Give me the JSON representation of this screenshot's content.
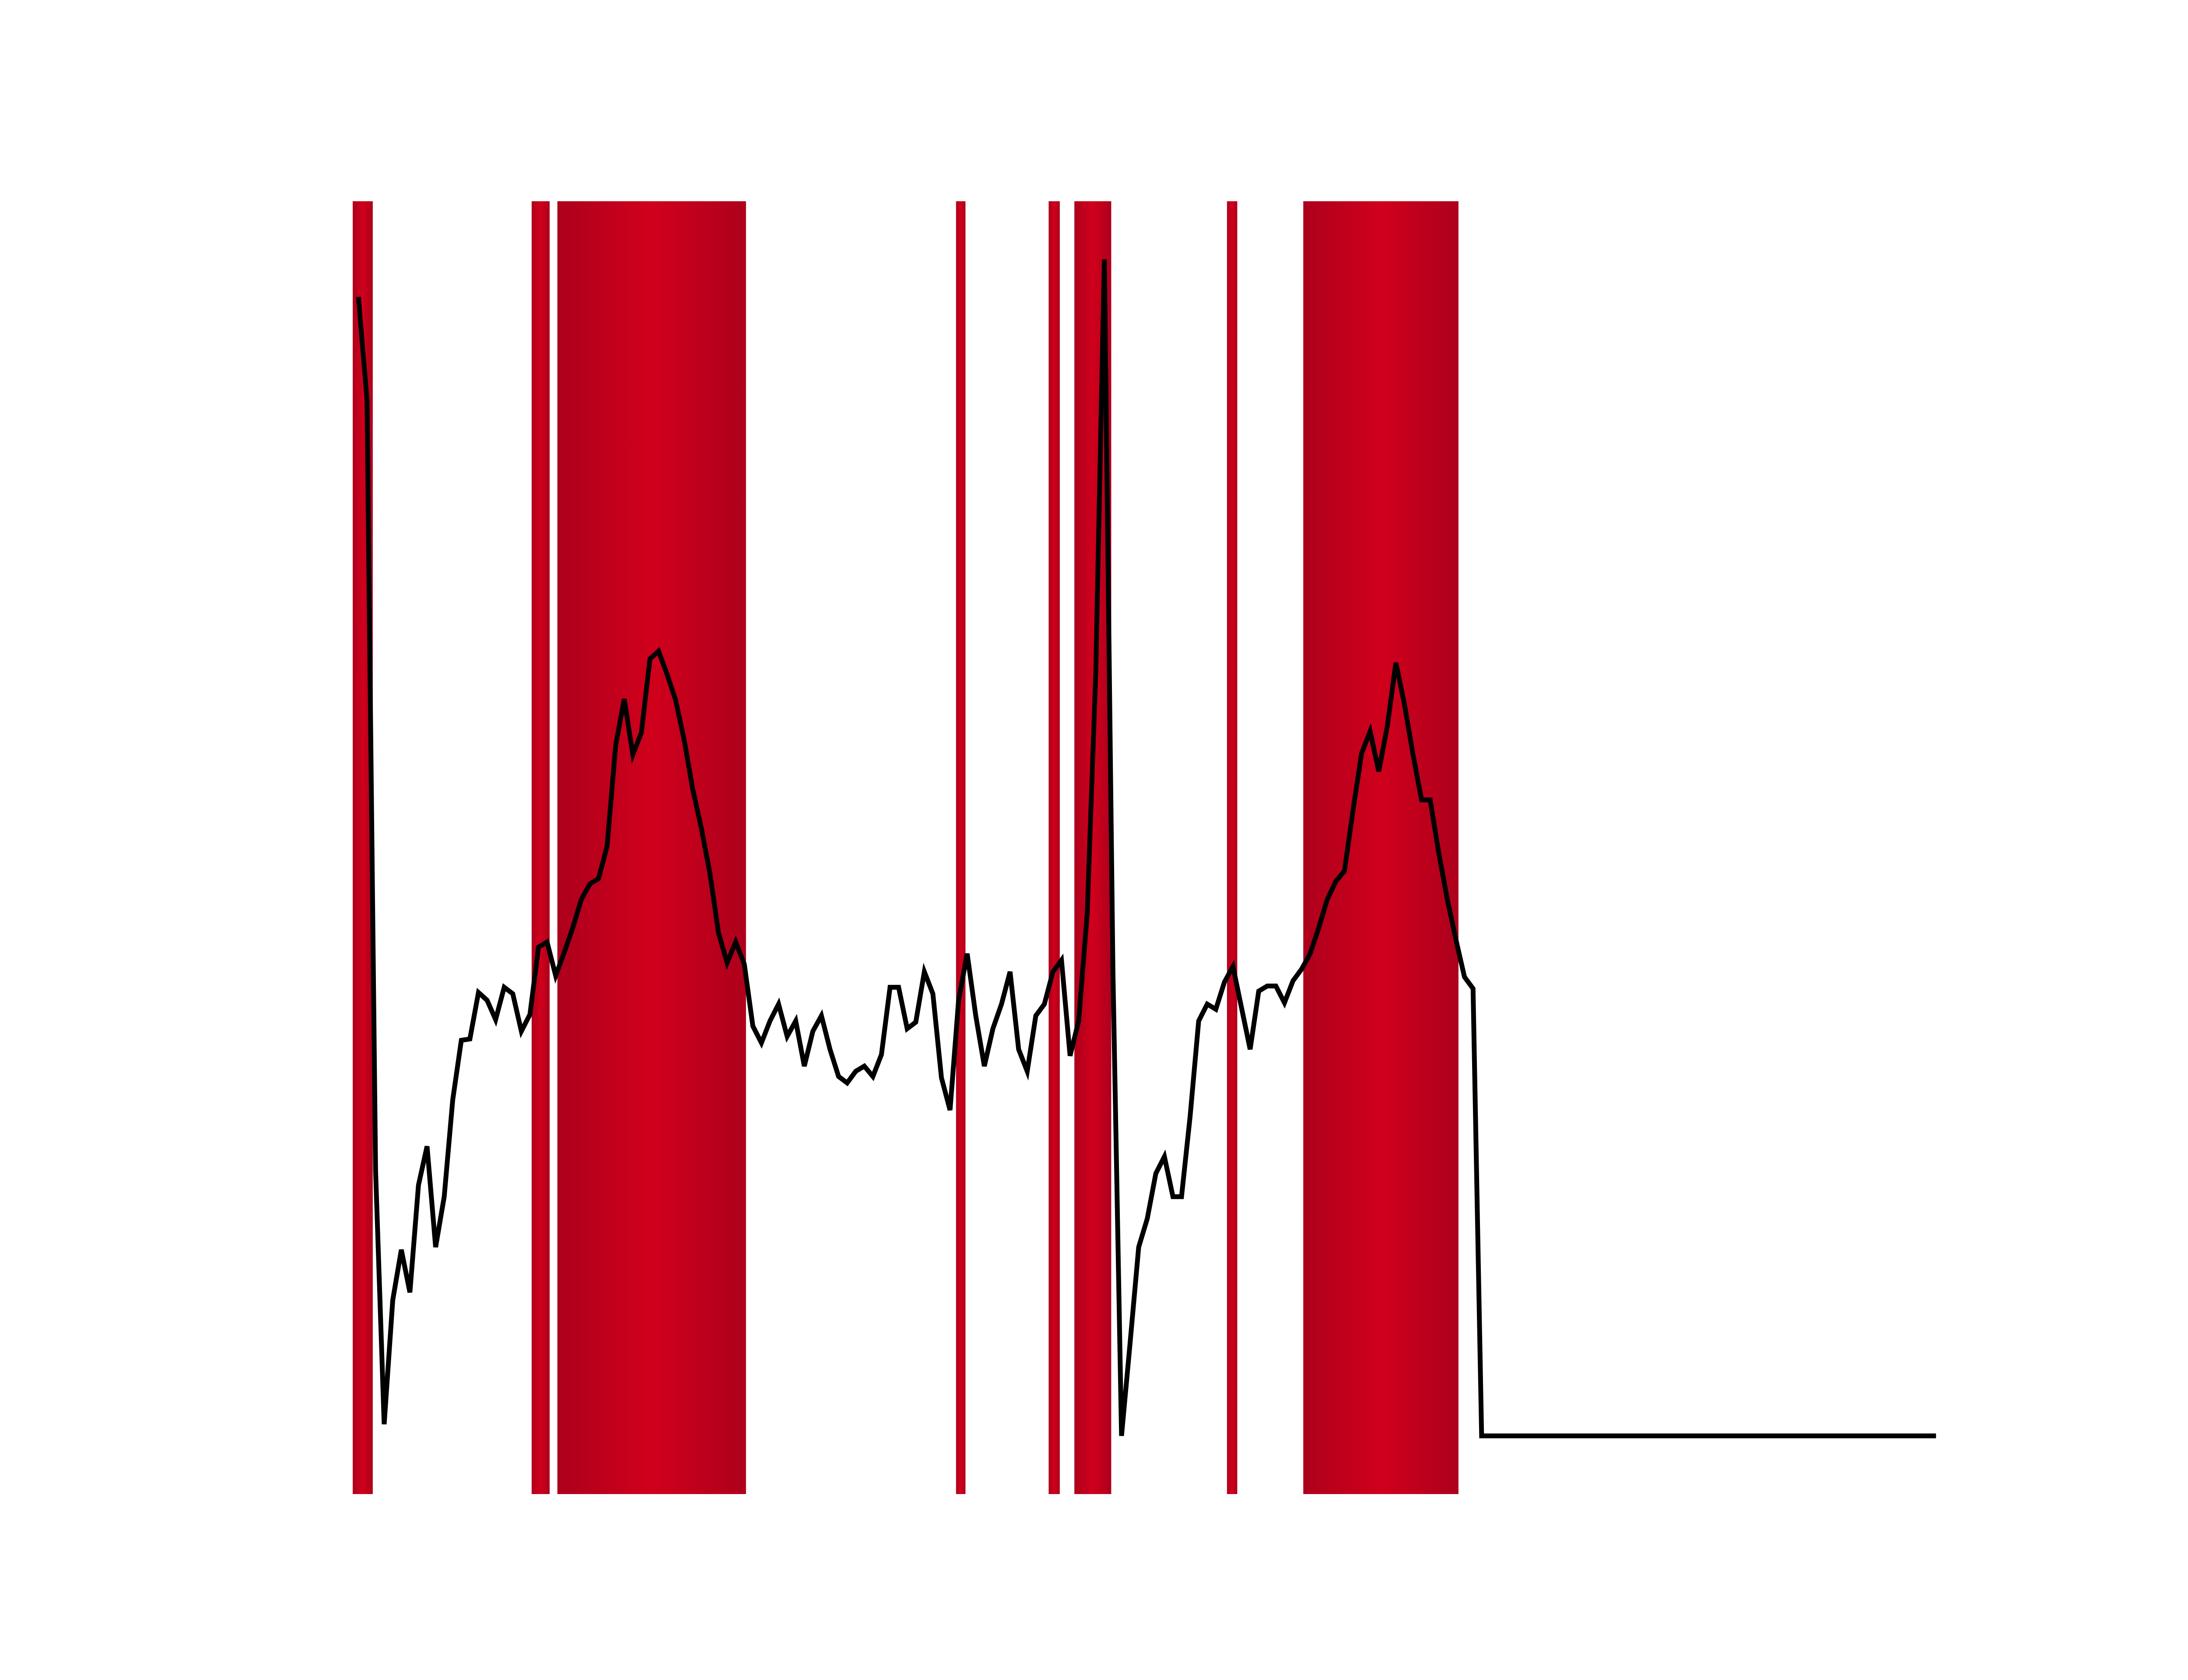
{
  "chart_data": {
    "type": "line",
    "xlim": [
      -0.67,
      184.5
    ],
    "ylim": [
      0,
      100
    ],
    "spans": [
      {
        "start": -0.67,
        "end": 1.67
      },
      {
        "start": 20.2,
        "end": 22.3
      },
      {
        "start": 23.2,
        "end": 45.2
      },
      {
        "start": 69.7,
        "end": 70.8
      },
      {
        "start": 80.5,
        "end": 81.8
      },
      {
        "start": 83.5,
        "end": 87.8
      },
      {
        "start": 101.3,
        "end": 102.5
      },
      {
        "start": 110.2,
        "end": 128.3
      }
    ],
    "span_color": "#d0001c",
    "x": [
      0,
      1,
      2,
      3,
      4,
      5,
      6,
      7,
      8,
      9,
      10,
      11,
      12,
      13,
      14,
      15,
      16,
      17,
      18,
      19,
      20,
      21,
      22,
      23,
      24,
      25,
      26,
      27,
      28,
      29,
      30,
      31,
      32,
      33,
      34,
      35,
      36,
      37,
      38,
      39,
      40,
      41,
      42,
      43,
      44,
      45,
      46,
      47,
      48,
      49,
      50,
      51,
      52,
      53,
      54,
      55,
      56,
      57,
      58,
      59,
      60,
      61,
      62,
      63,
      64,
      65,
      66,
      67,
      68,
      69,
      70,
      71,
      72,
      73,
      74,
      75,
      76,
      77,
      78,
      79,
      80,
      81,
      82,
      83,
      84,
      85,
      86,
      87,
      88,
      89,
      90,
      91,
      92,
      93,
      94,
      95,
      96,
      97,
      98,
      99,
      100,
      101,
      102,
      103,
      104,
      105,
      106,
      107,
      108,
      109,
      110,
      111,
      112,
      113,
      114,
      115,
      116,
      117,
      118,
      119,
      120,
      121,
      122,
      123,
      124,
      125,
      126,
      127,
      128,
      129,
      130,
      131,
      184
    ],
    "series": [
      {
        "color": "#000000",
        "values": [
          92.6,
          84.6,
          25.0,
          5.4,
          15.0,
          18.9,
          15.6,
          23.9,
          26.9,
          19.1,
          23.0,
          30.5,
          35.1,
          35.2,
          38.8,
          38.2,
          36.7,
          39.2,
          38.7,
          35.8,
          37.1,
          42.3,
          42.7,
          40.1,
          41.9,
          43.8,
          46.0,
          47.2,
          47.6,
          50.1,
          57.9,
          61.5,
          57.2,
          58.9,
          64.6,
          65.2,
          63.4,
          61.4,
          58.3,
          54.5,
          51.5,
          48.0,
          43.4,
          41.1,
          42.7,
          41.0,
          36.2,
          34.9,
          36.6,
          37.9,
          35.4,
          36.6,
          33.1,
          35.8,
          37.0,
          34.4,
          32.3,
          31.8,
          32.7,
          33.1,
          32.3,
          34.0,
          39.2,
          39.2,
          36.0,
          36.5,
          40.4,
          38.7,
          32.2,
          29.7,
          38.2,
          41.8,
          37.0,
          33.1,
          36.0,
          37.9,
          40.4,
          34.4,
          32.7,
          37.0,
          37.9,
          40.4,
          41.3,
          33.9,
          36.6,
          44.9,
          63.6,
          95.5,
          40.4,
          4.5,
          11.7,
          19.1,
          21.3,
          24.8,
          26.1,
          23.0,
          23.0,
          29.2,
          36.6,
          37.9,
          37.5,
          39.6,
          40.8,
          37.6,
          34.4,
          38.9,
          39.3,
          39.3,
          38.0,
          39.7,
          40.6,
          41.8,
          43.8,
          46.0,
          47.4,
          48.2,
          52.9,
          57.3,
          59.0,
          55.9,
          59.4,
          64.3,
          61.1,
          57.2,
          53.7,
          53.7,
          49.6,
          46.0,
          42.9,
          40.0,
          39.1,
          4.5,
          4.5
        ]
      }
    ]
  }
}
